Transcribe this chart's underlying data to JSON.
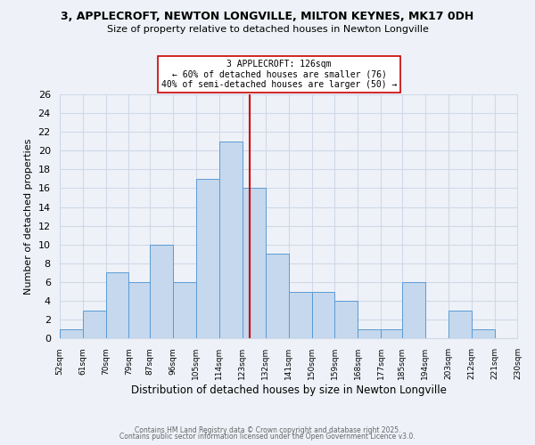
{
  "title_line1": "3, APPLECROFT, NEWTON LONGVILLE, MILTON KEYNES, MK17 0DH",
  "title_line2": "Size of property relative to detached houses in Newton Longville",
  "xlabel": "Distribution of detached houses by size in Newton Longville",
  "ylabel": "Number of detached properties",
  "bin_edges": [
    52,
    61,
    70,
    79,
    87,
    96,
    105,
    114,
    123,
    132,
    141,
    150,
    159,
    168,
    177,
    185,
    194,
    203,
    212,
    221,
    230
  ],
  "bin_heights": [
    1,
    3,
    7,
    6,
    10,
    6,
    17,
    21,
    16,
    9,
    5,
    5,
    4,
    1,
    1,
    6,
    0,
    3,
    1,
    0
  ],
  "bar_color": "#c5d8ed",
  "bar_edge_color": "#5b9bd5",
  "property_line_x": 126,
  "property_line_color": "#cc0000",
  "annotation_title": "3 APPLECROFT: 126sqm",
  "annotation_line1": "← 60% of detached houses are smaller (76)",
  "annotation_line2": "40% of semi-detached houses are larger (50) →",
  "annotation_box_edge_color": "#cc0000",
  "ylim": [
    0,
    26
  ],
  "yticks": [
    0,
    2,
    4,
    6,
    8,
    10,
    12,
    14,
    16,
    18,
    20,
    22,
    24,
    26
  ],
  "grid_color": "#d0d8e8",
  "background_color": "#eef2f8",
  "footer_line1": "Contains HM Land Registry data © Crown copyright and database right 2025.",
  "footer_line2": "Contains public sector information licensed under the Open Government Licence v3.0."
}
